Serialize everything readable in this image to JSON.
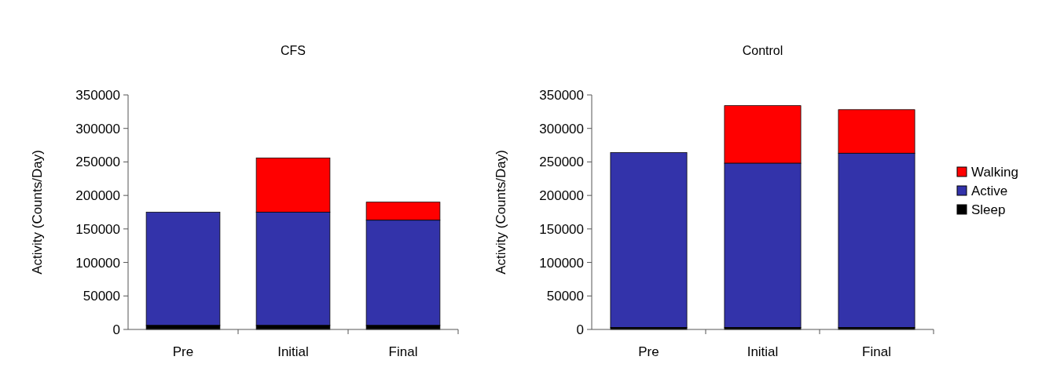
{
  "chart_data": [
    {
      "type": "bar",
      "title": "CFS",
      "ylabel": "Activity (Counts/Day)",
      "categories": [
        "Pre",
        "Initial",
        "Final"
      ],
      "stacked": true,
      "ylim": [
        0,
        350000
      ],
      "yticks": [
        0,
        50000,
        100000,
        150000,
        200000,
        250000,
        300000,
        350000
      ],
      "legend": false,
      "series": [
        {
          "color": "#000000",
          "values": [
            6000,
            6000,
            6000
          ]
        },
        {
          "color": "#3333aa",
          "values": [
            169000,
            169000,
            157000
          ]
        },
        {
          "color": "#ff0000",
          "values": [
            0,
            81000,
            27000
          ]
        }
      ]
    },
    {
      "type": "bar",
      "title": "Control",
      "ylabel": "Activity (Counts/Day)",
      "categories": [
        "Pre",
        "Initial",
        "Final"
      ],
      "stacked": true,
      "ylim": [
        0,
        350000
      ],
      "yticks": [
        0,
        50000,
        100000,
        150000,
        200000,
        250000,
        300000,
        350000
      ],
      "legend": "right",
      "series": [
        {
          "name": "Sleep",
          "color": "#000000",
          "values": [
            3000,
            3000,
            3000
          ]
        },
        {
          "name": "Active",
          "color": "#3333aa",
          "values": [
            261000,
            245000,
            260000
          ]
        },
        {
          "name": "Walking",
          "color": "#ff0000",
          "values": [
            0,
            86000,
            65000
          ]
        }
      ]
    }
  ]
}
